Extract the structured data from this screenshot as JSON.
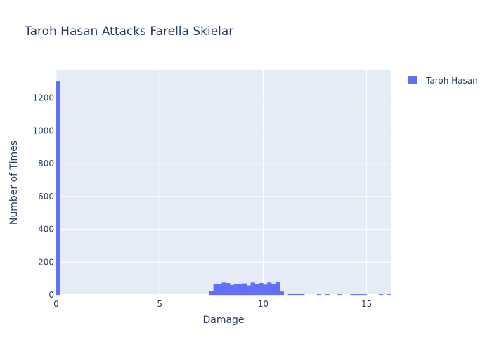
{
  "chart_data": {
    "type": "bar",
    "title": "Taroh Hasan Attacks Farella Skielar",
    "xlabel": "Damage",
    "ylabel": "Number of Times",
    "xlim": [
      0,
      16.2
    ],
    "ylim": [
      0,
      1370
    ],
    "x_ticks": [
      0,
      5,
      10,
      15
    ],
    "y_ticks": [
      0,
      200,
      400,
      600,
      800,
      1000,
      1200
    ],
    "bin_width": 0.2,
    "legend_position": "top-right",
    "series": [
      {
        "name": "Taroh Hasan",
        "color": "#636efa",
        "bins": [
          {
            "x0": 0.0,
            "count": 1300
          },
          {
            "x0": 7.4,
            "count": 25
          },
          {
            "x0": 7.6,
            "count": 65
          },
          {
            "x0": 7.8,
            "count": 65
          },
          {
            "x0": 8.0,
            "count": 75
          },
          {
            "x0": 8.2,
            "count": 72
          },
          {
            "x0": 8.4,
            "count": 60
          },
          {
            "x0": 8.6,
            "count": 65
          },
          {
            "x0": 8.8,
            "count": 68
          },
          {
            "x0": 9.0,
            "count": 70
          },
          {
            "x0": 9.2,
            "count": 57
          },
          {
            "x0": 9.4,
            "count": 75
          },
          {
            "x0": 9.6,
            "count": 65
          },
          {
            "x0": 9.8,
            "count": 72
          },
          {
            "x0": 10.0,
            "count": 62
          },
          {
            "x0": 10.2,
            "count": 75
          },
          {
            "x0": 10.4,
            "count": 65
          },
          {
            "x0": 10.6,
            "count": 78
          },
          {
            "x0": 10.8,
            "count": 20
          },
          {
            "x0": 11.2,
            "count": 4
          },
          {
            "x0": 11.4,
            "count": 4
          },
          {
            "x0": 11.6,
            "count": 4
          },
          {
            "x0": 11.8,
            "count": 4
          },
          {
            "x0": 12.6,
            "count": 3
          },
          {
            "x0": 13.0,
            "count": 3
          },
          {
            "x0": 13.6,
            "count": 3
          },
          {
            "x0": 14.2,
            "count": 3
          },
          {
            "x0": 14.4,
            "count": 3
          },
          {
            "x0": 14.6,
            "count": 3
          },
          {
            "x0": 14.8,
            "count": 3
          },
          {
            "x0": 15.6,
            "count": 3
          },
          {
            "x0": 16.0,
            "count": 3
          }
        ]
      }
    ]
  }
}
